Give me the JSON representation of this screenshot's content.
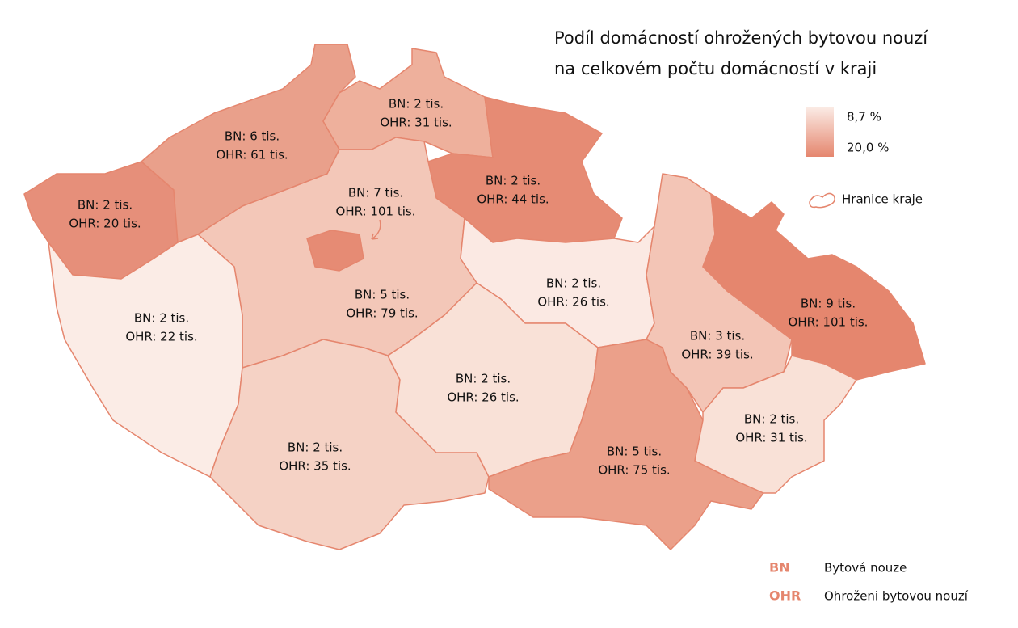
{
  "title": {
    "lines": [
      "Podíl domácností ohrožených bytovou nouzí",
      "na celkovém počtu domácností v kraji"
    ]
  },
  "scale": {
    "low": "8,7 %",
    "high": "20,0 %",
    "low_color": "#fbece6",
    "high_color": "#e5866e"
  },
  "border_legend": {
    "label": "Hranice kraje",
    "color": "#e5866e"
  },
  "abbreviations": [
    {
      "abbr": "BN",
      "text": "Bytová nouze"
    },
    {
      "abbr": "OHR",
      "text": "Ohroženi bytovou nouzí"
    }
  ],
  "regions": [
    {
      "bn": "BN: 2 tis.",
      "ohr": "OHR: 20 tis.",
      "color": "#e68f7a"
    },
    {
      "bn": "BN: 6 tis.",
      "ohr": "OHR: 61 tis.",
      "color": "#e9a08b"
    },
    {
      "bn": "BN: 2 tis.",
      "ohr": "OHR: 31 tis.",
      "color": "#eeb09c"
    },
    {
      "bn": "BN: 2 tis.",
      "ohr": "OHR: 44 tis.",
      "color": "#e68b74"
    },
    {
      "bn": "BN: 5 tis.",
      "ohr": "OHR: 79 tis.",
      "color": "#f3c7b8"
    },
    {
      "bn": "BN: 7 tis.",
      "ohr": "OHR: 101 tis.",
      "color": "#e68b74"
    },
    {
      "bn": "BN: 2 tis.",
      "ohr": "OHR: 22 tis.",
      "color": "#fbece6"
    },
    {
      "bn": "BN: 2 tis.",
      "ohr": "OHR: 35 tis.",
      "color": "#f5d2c5"
    },
    {
      "bn": "BN: 2 tis.",
      "ohr": "OHR: 26 tis.",
      "color": "#fbe9e3"
    },
    {
      "bn": "BN: 2 tis.",
      "ohr": "OHR: 26 tis.",
      "color": "#f9e1d7"
    },
    {
      "bn": "BN: 5 tis.",
      "ohr": "OHR: 75 tis.",
      "color": "#eba08a"
    },
    {
      "bn": "BN: 3 tis.",
      "ohr": "OHR: 39 tis.",
      "color": "#f3c5b6"
    },
    {
      "bn": "BN: 9 tis.",
      "ohr": "OHR: 101 tis.",
      "color": "#e5866e"
    },
    {
      "bn": "BN: 2 tis.",
      "ohr": "OHR: 31 tis.",
      "color": "#f9e1d7"
    }
  ]
}
